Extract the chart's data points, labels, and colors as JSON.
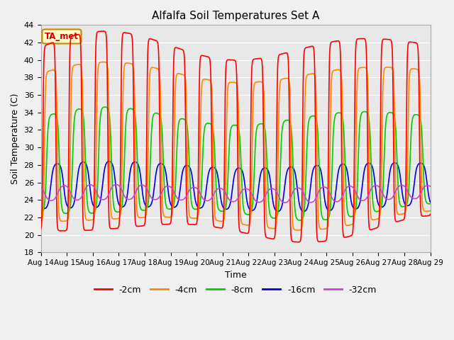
{
  "title": "Alfalfa Soil Temperatures Set A",
  "xlabel": "Time",
  "ylabel": "Soil Temperature (C)",
  "ylim": [
    18,
    44
  ],
  "xlim": [
    0,
    15
  ],
  "plot_bg": "#e8e8e8",
  "fig_bg": "#f0f0f0",
  "annotation_text": "TA_met",
  "annotation_bg": "#ffffcc",
  "annotation_border": "#cc8800",
  "annotation_text_color": "#cc0000",
  "grid_color": "#ffffff",
  "lines": {
    "-2cm": {
      "color": "#ff0000",
      "lw": 1.2
    },
    "-4cm": {
      "color": "#ff8800",
      "lw": 1.2
    },
    "-8cm": {
      "color": "#00cc00",
      "lw": 1.2
    },
    "-16cm": {
      "color": "#0000dd",
      "lw": 1.2
    },
    "-32cm": {
      "color": "#cc44cc",
      "lw": 1.2
    }
  },
  "tick_labels": [
    "Aug 14",
    "Aug 15",
    "Aug 16",
    "Aug 17",
    "Aug 18",
    "Aug 19",
    "Aug 20",
    "Aug 21",
    "Aug 22",
    "Aug 23",
    "Aug 24",
    "Aug 25",
    "Aug 26",
    "Aug 27",
    "Aug 28",
    "Aug 29"
  ],
  "yticks": [
    18,
    20,
    22,
    24,
    26,
    28,
    30,
    32,
    34,
    36,
    38,
    40,
    42,
    44
  ]
}
